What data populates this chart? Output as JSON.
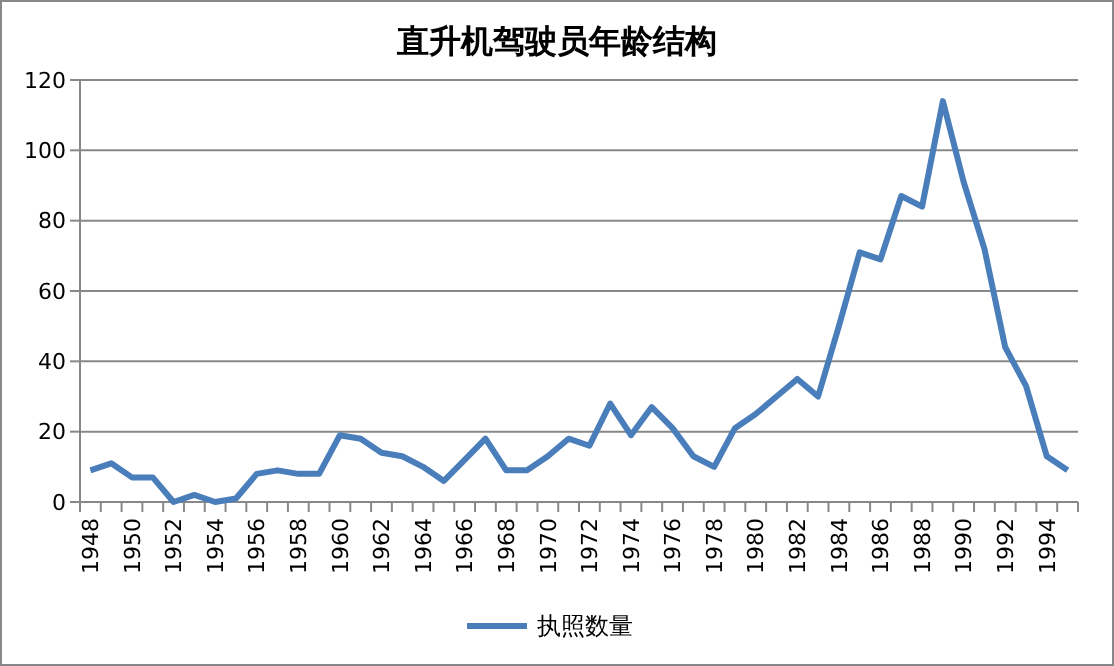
{
  "chart_data": {
    "type": "line",
    "title": "直升机驾驶员年龄结构",
    "categories": [
      "1948",
      null,
      "1950",
      null,
      "1952",
      null,
      "1954",
      null,
      "1956",
      null,
      "1958",
      null,
      "1960",
      null,
      "1962",
      null,
      "1964",
      null,
      "1966",
      null,
      "1968",
      null,
      "1970",
      null,
      "1972",
      null,
      "1974",
      null,
      "1976",
      null,
      "1978",
      null,
      "1980",
      null,
      "1982",
      null,
      "1984",
      null,
      "1986",
      null,
      "1988",
      null,
      "1990",
      null,
      "1992",
      null,
      "1994",
      null
    ],
    "series": [
      {
        "name": "执照数量",
        "color": "#4a7ebb",
        "values": [
          9,
          11,
          7,
          7,
          0,
          2,
          0,
          1,
          8,
          9,
          8,
          8,
          19,
          18,
          14,
          13,
          10,
          6,
          12,
          18,
          9,
          9,
          13,
          18,
          16,
          28,
          19,
          27,
          21,
          13,
          10,
          21,
          25,
          30,
          35,
          30,
          50,
          71,
          69,
          87,
          84,
          114,
          91,
          72,
          44,
          33,
          13,
          9
        ]
      }
    ],
    "ylim": [
      0,
      120
    ],
    "yticks": [
      0,
      20,
      40,
      60,
      80,
      100,
      120
    ],
    "grid": "y",
    "legend": "bottom",
    "marker": "none",
    "line_style": "solid"
  }
}
